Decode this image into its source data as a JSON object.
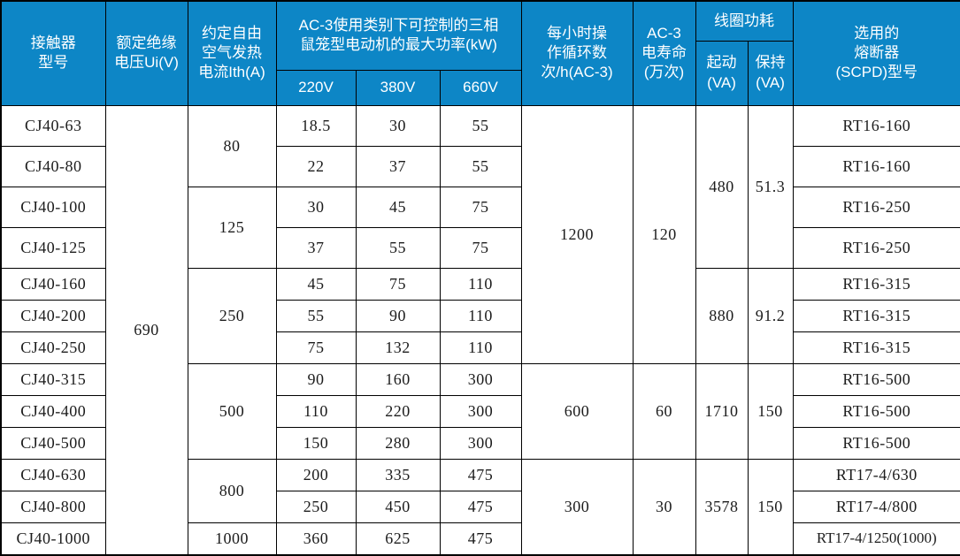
{
  "colors": {
    "header_bg": "#0d86c6",
    "header_text": "#ffffff",
    "body_text": "#1c1c1c",
    "border": "#000000"
  },
  "table": {
    "header": {
      "rows": [
        [
          {
            "text": "接触器\n型号",
            "rowspan": 3,
            "name": "header-contactor-model"
          },
          {
            "text": "额定绝缘\n电压Ui(V)",
            "rowspan": 3,
            "name": "header-rated-insulation-voltage"
          },
          {
            "text": "约定自由\n空气发热\n电流Ith(A)",
            "rowspan": 3,
            "name": "header-conventional-free-air-thermal-current"
          },
          {
            "text": "AC-3使用类别下可控制的三相\n鼠笼型电动机的最大功率(kW)",
            "colspan": 3,
            "rowspan": 2,
            "name": "header-ac3-max-motor-power"
          },
          {
            "text": "每小时操\n作循环数\n次/h(AC-3)",
            "rowspan": 3,
            "name": "header-operating-cycles-per-hour"
          },
          {
            "text": "AC-3\n电寿命\n(万次)",
            "rowspan": 3,
            "name": "header-ac3-electrical-life"
          },
          {
            "text": "线圈功耗",
            "colspan": 2,
            "name": "header-coil-power-consumption"
          },
          {
            "text": "选用的\n熔断器\n(SCPD)型号",
            "rowspan": 3,
            "name": "header-selected-fuse-scpd-model"
          }
        ],
        [
          {
            "text": "起动\n(VA)",
            "rowspan": 2,
            "name": "header-coil-starting-va"
          },
          {
            "text": "保持\n(VA)",
            "rowspan": 2,
            "name": "header-coil-holding-va"
          }
        ],
        [
          {
            "text": "220V",
            "name": "header-voltage-220v"
          },
          {
            "text": "380V",
            "name": "header-voltage-380v"
          },
          {
            "text": "660V",
            "name": "header-voltage-660v"
          }
        ]
      ]
    },
    "body": {
      "rows": [
        {
          "cells": [
            {
              "text": "CJ40-63",
              "name": "model-cell"
            },
            {
              "text": "690",
              "rowspan": 13,
              "name": "insulation-voltage-cell"
            },
            {
              "text": "80",
              "rowspan": 2,
              "name": "thermal-current-cell"
            },
            {
              "text": "18.5",
              "name": "power-220v-cell"
            },
            {
              "text": "30",
              "name": "power-380v-cell"
            },
            {
              "text": "55",
              "name": "power-660v-cell"
            },
            {
              "text": "1200",
              "rowspan": 7,
              "name": "cycles-cell"
            },
            {
              "text": "120",
              "rowspan": 7,
              "name": "electrical-life-cell"
            },
            {
              "text": "480",
              "rowspan": 4,
              "name": "coil-start-cell"
            },
            {
              "text": "51.3",
              "rowspan": 4,
              "name": "coil-hold-cell"
            },
            {
              "text": "RT16-160",
              "name": "fuse-cell"
            }
          ]
        },
        {
          "cells": [
            {
              "text": "CJ40-80",
              "name": "model-cell"
            },
            {
              "text": "22",
              "name": "power-220v-cell"
            },
            {
              "text": "37",
              "name": "power-380v-cell"
            },
            {
              "text": "55",
              "name": "power-660v-cell"
            },
            {
              "text": "RT16-160",
              "name": "fuse-cell"
            }
          ]
        },
        {
          "cells": [
            {
              "text": "CJ40-100",
              "name": "model-cell"
            },
            {
              "text": "125",
              "rowspan": 2,
              "name": "thermal-current-cell"
            },
            {
              "text": "30",
              "name": "power-220v-cell"
            },
            {
              "text": "45",
              "name": "power-380v-cell"
            },
            {
              "text": "75",
              "name": "power-660v-cell"
            },
            {
              "text": "RT16-250",
              "name": "fuse-cell"
            }
          ]
        },
        {
          "cells": [
            {
              "text": "CJ40-125",
              "name": "model-cell"
            },
            {
              "text": "37",
              "name": "power-220v-cell"
            },
            {
              "text": "55",
              "name": "power-380v-cell"
            },
            {
              "text": "75",
              "name": "power-660v-cell"
            },
            {
              "text": "RT16-250",
              "name": "fuse-cell"
            }
          ]
        },
        {
          "cells": [
            {
              "text": "CJ40-160",
              "name": "model-cell"
            },
            {
              "text": "250",
              "rowspan": 3,
              "name": "thermal-current-cell"
            },
            {
              "text": "45",
              "name": "power-220v-cell"
            },
            {
              "text": "75",
              "name": "power-380v-cell"
            },
            {
              "text": "110",
              "name": "power-660v-cell"
            },
            {
              "text": "880",
              "rowspan": 3,
              "name": "coil-start-cell"
            },
            {
              "text": "91.2",
              "rowspan": 3,
              "name": "coil-hold-cell"
            },
            {
              "text": "RT16-315",
              "name": "fuse-cell"
            }
          ]
        },
        {
          "cells": [
            {
              "text": "CJ40-200",
              "name": "model-cell"
            },
            {
              "text": "55",
              "name": "power-220v-cell"
            },
            {
              "text": "90",
              "name": "power-380v-cell"
            },
            {
              "text": "110",
              "name": "power-660v-cell"
            },
            {
              "text": "RT16-315",
              "name": "fuse-cell"
            }
          ]
        },
        {
          "cells": [
            {
              "text": "CJ40-250",
              "name": "model-cell"
            },
            {
              "text": "75",
              "name": "power-220v-cell"
            },
            {
              "text": "132",
              "name": "power-380v-cell"
            },
            {
              "text": "110",
              "name": "power-660v-cell"
            },
            {
              "text": "RT16-315",
              "name": "fuse-cell"
            }
          ]
        },
        {
          "cells": [
            {
              "text": "CJ40-315",
              "name": "model-cell"
            },
            {
              "text": "500",
              "rowspan": 3,
              "name": "thermal-current-cell"
            },
            {
              "text": "90",
              "name": "power-220v-cell"
            },
            {
              "text": "160",
              "name": "power-380v-cell"
            },
            {
              "text": "300",
              "name": "power-660v-cell"
            },
            {
              "text": "600",
              "rowspan": 3,
              "name": "cycles-cell"
            },
            {
              "text": "60",
              "rowspan": 3,
              "name": "electrical-life-cell"
            },
            {
              "text": "1710",
              "rowspan": 3,
              "name": "coil-start-cell"
            },
            {
              "text": "150",
              "rowspan": 3,
              "name": "coil-hold-cell"
            },
            {
              "text": "RT16-500",
              "name": "fuse-cell"
            }
          ]
        },
        {
          "cells": [
            {
              "text": "CJ40-400",
              "name": "model-cell"
            },
            {
              "text": "110",
              "name": "power-220v-cell"
            },
            {
              "text": "220",
              "name": "power-380v-cell"
            },
            {
              "text": "300",
              "name": "power-660v-cell"
            },
            {
              "text": "RT16-500",
              "name": "fuse-cell"
            }
          ]
        },
        {
          "cells": [
            {
              "text": "CJ40-500",
              "name": "model-cell"
            },
            {
              "text": "150",
              "name": "power-220v-cell"
            },
            {
              "text": "280",
              "name": "power-380v-cell"
            },
            {
              "text": "300",
              "name": "power-660v-cell"
            },
            {
              "text": "RT16-500",
              "name": "fuse-cell"
            }
          ]
        },
        {
          "cells": [
            {
              "text": "CJ40-630",
              "name": "model-cell"
            },
            {
              "text": "800",
              "rowspan": 2,
              "name": "thermal-current-cell"
            },
            {
              "text": "200",
              "name": "power-220v-cell"
            },
            {
              "text": "335",
              "name": "power-380v-cell"
            },
            {
              "text": "475",
              "name": "power-660v-cell"
            },
            {
              "text": "300",
              "rowspan": 3,
              "name": "cycles-cell"
            },
            {
              "text": "30",
              "rowspan": 3,
              "name": "electrical-life-cell"
            },
            {
              "text": "3578",
              "rowspan": 3,
              "name": "coil-start-cell"
            },
            {
              "text": "150",
              "rowspan": 3,
              "name": "coil-hold-cell"
            },
            {
              "text": "RT17-4/630",
              "name": "fuse-cell"
            }
          ]
        },
        {
          "cells": [
            {
              "text": "CJ40-800",
              "name": "model-cell"
            },
            {
              "text": "250",
              "name": "power-220v-cell"
            },
            {
              "text": "450",
              "name": "power-380v-cell"
            },
            {
              "text": "475",
              "name": "power-660v-cell"
            },
            {
              "text": "RT17-4/800",
              "name": "fuse-cell"
            }
          ]
        },
        {
          "cells": [
            {
              "text": "CJ40-1000",
              "name": "model-cell"
            },
            {
              "text": "1000",
              "name": "thermal-current-cell"
            },
            {
              "text": "360",
              "name": "power-220v-cell"
            },
            {
              "text": "625",
              "name": "power-380v-cell"
            },
            {
              "text": "475",
              "name": "power-660v-cell"
            },
            {
              "text": "RT17-4/1250(1000)",
              "name": "fuse-cell"
            }
          ]
        }
      ]
    }
  }
}
